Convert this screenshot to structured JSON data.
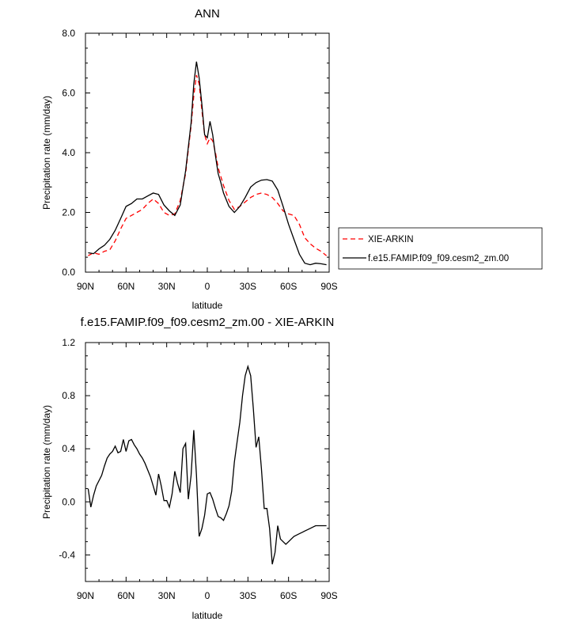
{
  "chart_data": [
    {
      "type": "line",
      "title": "ANN",
      "xlabel": "latitude",
      "ylabel": "Precipitation rate (mm/day)",
      "ylim": [
        0,
        8
      ],
      "xlim": [
        -90,
        90
      ],
      "x_ticks": [
        "90N",
        "60N",
        "30N",
        "0",
        "30S",
        "60S",
        "90S"
      ],
      "y_ticks": [
        "0.0",
        "2.0",
        "4.0",
        "6.0",
        "8.0"
      ],
      "legend_position": "right",
      "x": [
        -88,
        -84,
        -80,
        -76,
        -72,
        -68,
        -64,
        -60,
        -56,
        -52,
        -48,
        -44,
        -40,
        -36,
        -32,
        -28,
        -24,
        -20,
        -16,
        -12,
        -10,
        -8,
        -6,
        -4,
        -2,
        0,
        2,
        4,
        6,
        8,
        10,
        12,
        16,
        20,
        24,
        28,
        32,
        36,
        40,
        44,
        48,
        52,
        56,
        60,
        64,
        68,
        72,
        76,
        80,
        84,
        88
      ],
      "series": [
        {
          "name": "XIE-ARKIN",
          "color": "#ff0000",
          "dash": true,
          "values": [
            0.55,
            0.65,
            0.6,
            0.7,
            0.75,
            1.05,
            1.45,
            1.8,
            1.9,
            2.0,
            2.1,
            2.3,
            2.45,
            2.3,
            2.0,
            1.9,
            1.95,
            2.4,
            3.3,
            4.9,
            5.9,
            6.6,
            6.3,
            5.4,
            4.6,
            4.3,
            4.5,
            4.4,
            4.0,
            3.5,
            3.2,
            2.9,
            2.4,
            2.1,
            2.2,
            2.35,
            2.5,
            2.6,
            2.65,
            2.6,
            2.5,
            2.3,
            2.05,
            1.95,
            1.9,
            1.6,
            1.15,
            0.95,
            0.8,
            0.7,
            0.55
          ]
        },
        {
          "name": "f.e15.FAMIP.f09_f09.cesm2_zm.00",
          "color": "#000000",
          "dash": false,
          "values": [
            0.65,
            0.62,
            0.78,
            0.9,
            1.1,
            1.4,
            1.8,
            2.2,
            2.3,
            2.45,
            2.45,
            2.55,
            2.65,
            2.6,
            2.25,
            2.05,
            1.9,
            2.25,
            3.4,
            5.0,
            6.3,
            7.05,
            6.5,
            5.6,
            4.6,
            4.5,
            5.05,
            4.6,
            3.9,
            3.3,
            3.0,
            2.65,
            2.2,
            2.0,
            2.2,
            2.5,
            2.85,
            3.0,
            3.08,
            3.1,
            3.05,
            2.75,
            2.2,
            1.6,
            1.1,
            0.6,
            0.3,
            0.25,
            0.3,
            0.28,
            0.25
          ]
        }
      ]
    },
    {
      "type": "line",
      "title": "f.e15.FAMIP.f09_f09.cesm2_zm.00 - XIE-ARKIN",
      "xlabel": "latitude",
      "ylabel": "Precipitation rate (mm/day)",
      "ylim": [
        -0.6,
        1.2
      ],
      "xlim": [
        -90,
        90
      ],
      "x_ticks": [
        "90N",
        "60N",
        "30N",
        "0",
        "30S",
        "60S",
        "90S"
      ],
      "y_ticks": [
        "-0.4",
        "0.0",
        "0.4",
        "0.8",
        "1.2"
      ],
      "x": [
        -88,
        -86,
        -84,
        -82,
        -80,
        -78,
        -76,
        -74,
        -72,
        -70,
        -68,
        -66,
        -64,
        -62,
        -60,
        -58,
        -56,
        -54,
        -52,
        -50,
        -48,
        -46,
        -44,
        -42,
        -40,
        -38,
        -36,
        -34,
        -32,
        -30,
        -28,
        -26,
        -24,
        -22,
        -20,
        -18,
        -16,
        -14,
        -12,
        -10,
        -8,
        -6,
        -4,
        -2,
        0,
        2,
        4,
        6,
        8,
        10,
        12,
        14,
        16,
        18,
        20,
        22,
        24,
        26,
        28,
        30,
        32,
        34,
        36,
        38,
        40,
        42,
        44,
        46,
        48,
        50,
        52,
        54,
        56,
        58,
        60,
        62,
        64,
        66,
        68,
        70,
        72,
        74,
        76,
        78,
        80,
        82,
        84,
        86,
        88
      ],
      "series": [
        {
          "color": "#000000",
          "values": [
            0.1,
            -0.04,
            0.05,
            0.12,
            0.16,
            0.2,
            0.27,
            0.33,
            0.36,
            0.38,
            0.42,
            0.37,
            0.38,
            0.47,
            0.38,
            0.46,
            0.47,
            0.43,
            0.4,
            0.36,
            0.33,
            0.29,
            0.24,
            0.19,
            0.12,
            0.05,
            0.21,
            0.12,
            0.01,
            0.01,
            -0.04,
            0.06,
            0.23,
            0.14,
            0.07,
            0.4,
            0.44,
            0.02,
            0.2,
            0.54,
            0.2,
            -0.26,
            -0.2,
            -0.1,
            0.06,
            0.07,
            0.02,
            -0.05,
            -0.11,
            -0.12,
            -0.14,
            -0.09,
            -0.03,
            0.08,
            0.3,
            0.45,
            0.6,
            0.8,
            0.95,
            1.02,
            0.95,
            0.7,
            0.41,
            0.49,
            0.25,
            -0.05,
            -0.05,
            -0.2,
            -0.47,
            -0.38,
            -0.18,
            -0.28,
            -0.3,
            -0.32,
            -0.3,
            -0.28,
            -0.26,
            -0.25,
            -0.24,
            -0.23,
            -0.22,
            -0.21,
            -0.2,
            -0.19,
            -0.18,
            -0.18,
            -0.18,
            -0.18,
            -0.18
          ]
        }
      ]
    }
  ]
}
